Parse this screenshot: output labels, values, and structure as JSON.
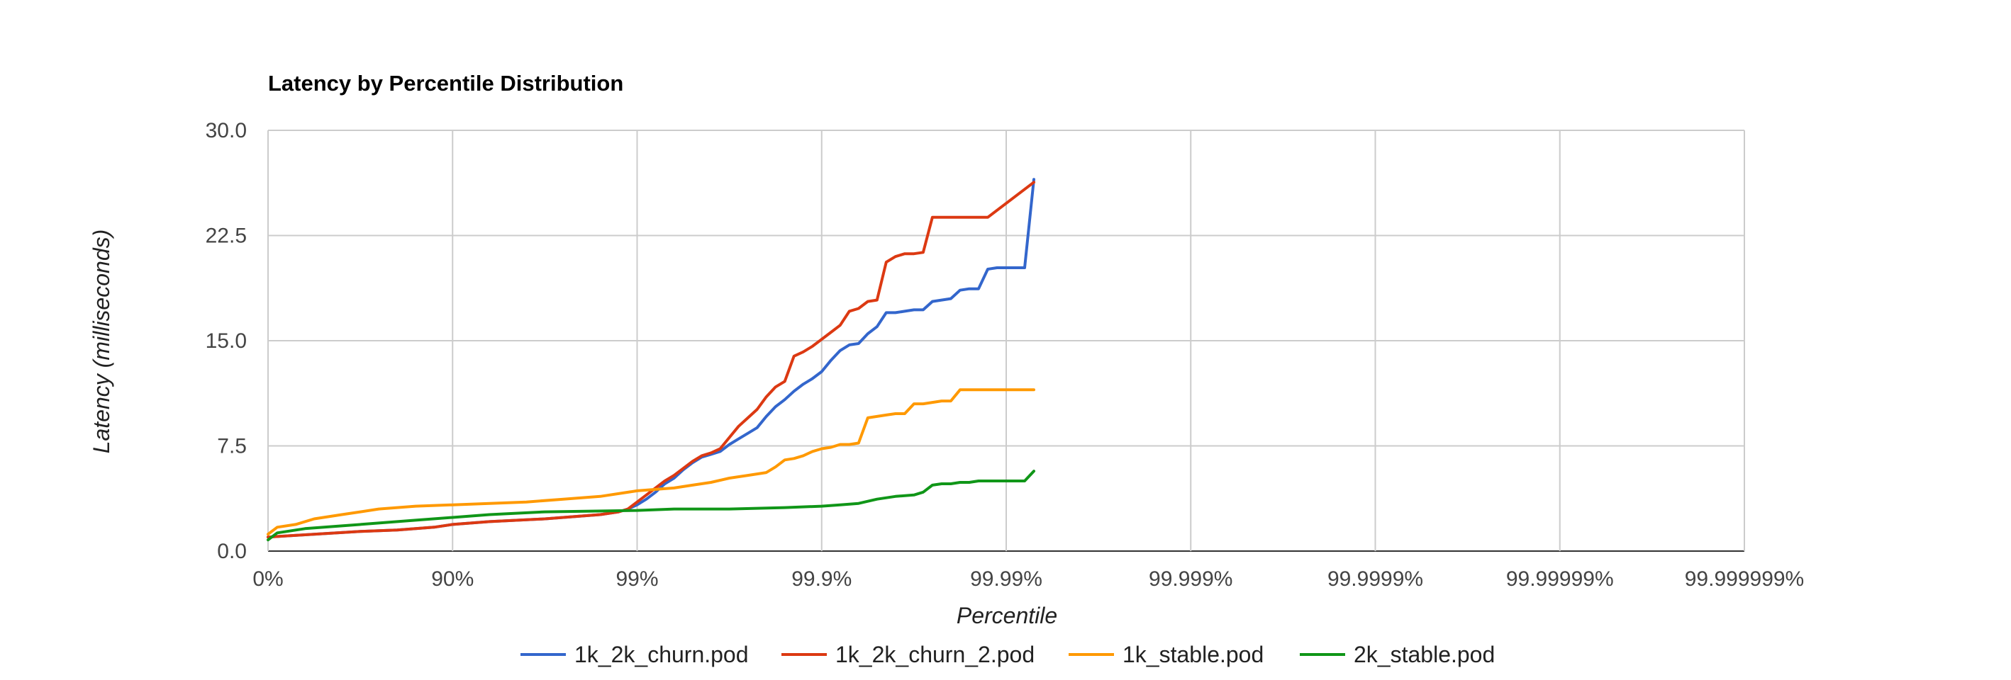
{
  "chart_data": {
    "type": "line",
    "title": "Latency by Percentile Distribution",
    "xlabel": "Percentile",
    "ylabel": "Latency (milliseconds)",
    "x_scale": "percentile-log (nines)",
    "x_ticks": [
      "0%",
      "90%",
      "99%",
      "99.9%",
      "99.99%",
      "99.999%",
      "99.9999%",
      "99.99999%",
      "99.999999%"
    ],
    "y_ticks": [
      "0.0",
      "7.5",
      "15.0",
      "22.5",
      "30.0"
    ],
    "ylim": [
      0,
      30
    ],
    "grid": true,
    "legend_position": "bottom",
    "series": [
      {
        "name": "1k_2k_churn.pod",
        "color": "#3366cc",
        "points": [
          [
            0,
            1.0
          ],
          [
            0.5,
            1.4
          ],
          [
            0.7,
            1.5
          ],
          [
            0.8,
            1.6
          ],
          [
            0.9,
            1.7
          ],
          [
            1.0,
            1.9
          ],
          [
            1.2,
            2.1
          ],
          [
            1.5,
            2.3
          ],
          [
            1.8,
            2.6
          ],
          [
            1.9,
            2.8
          ],
          [
            1.95,
            3.0
          ],
          [
            2.0,
            3.3
          ],
          [
            2.05,
            3.7
          ],
          [
            2.1,
            4.2
          ],
          [
            2.15,
            4.8
          ],
          [
            2.2,
            5.2
          ],
          [
            2.25,
            5.8
          ],
          [
            2.3,
            6.3
          ],
          [
            2.35,
            6.7
          ],
          [
            2.4,
            6.9
          ],
          [
            2.45,
            7.1
          ],
          [
            2.5,
            7.6
          ],
          [
            2.55,
            8.0
          ],
          [
            2.6,
            8.4
          ],
          [
            2.65,
            8.8
          ],
          [
            2.7,
            9.6
          ],
          [
            2.75,
            10.3
          ],
          [
            2.8,
            10.8
          ],
          [
            2.85,
            11.4
          ],
          [
            2.9,
            11.9
          ],
          [
            2.95,
            12.3
          ],
          [
            3.0,
            12.8
          ],
          [
            3.05,
            13.6
          ],
          [
            3.1,
            14.3
          ],
          [
            3.15,
            14.7
          ],
          [
            3.2,
            14.8
          ],
          [
            3.25,
            15.5
          ],
          [
            3.3,
            16.0
          ],
          [
            3.35,
            17.0
          ],
          [
            3.4,
            17.0
          ],
          [
            3.45,
            17.1
          ],
          [
            3.5,
            17.2
          ],
          [
            3.55,
            17.2
          ],
          [
            3.6,
            17.8
          ],
          [
            3.65,
            17.9
          ],
          [
            3.7,
            18.0
          ],
          [
            3.75,
            18.6
          ],
          [
            3.8,
            18.7
          ],
          [
            3.85,
            18.7
          ],
          [
            3.9,
            20.1
          ],
          [
            3.95,
            20.2
          ],
          [
            4.0,
            20.2
          ],
          [
            4.05,
            20.2
          ],
          [
            4.1,
            20.2
          ],
          [
            4.15,
            26.5
          ]
        ]
      },
      {
        "name": "1k_2k_churn_2.pod",
        "color": "#dc3912",
        "points": [
          [
            0,
            1.0
          ],
          [
            0.5,
            1.4
          ],
          [
            0.7,
            1.5
          ],
          [
            0.8,
            1.6
          ],
          [
            0.9,
            1.7
          ],
          [
            1.0,
            1.9
          ],
          [
            1.2,
            2.1
          ],
          [
            1.5,
            2.3
          ],
          [
            1.8,
            2.6
          ],
          [
            1.9,
            2.8
          ],
          [
            1.95,
            3.0
          ],
          [
            2.0,
            3.5
          ],
          [
            2.05,
            4.0
          ],
          [
            2.1,
            4.5
          ],
          [
            2.15,
            5.0
          ],
          [
            2.2,
            5.4
          ],
          [
            2.25,
            5.9
          ],
          [
            2.3,
            6.4
          ],
          [
            2.35,
            6.8
          ],
          [
            2.4,
            7.0
          ],
          [
            2.45,
            7.3
          ],
          [
            2.5,
            8.1
          ],
          [
            2.55,
            8.9
          ],
          [
            2.6,
            9.5
          ],
          [
            2.65,
            10.1
          ],
          [
            2.7,
            11.0
          ],
          [
            2.75,
            11.7
          ],
          [
            2.8,
            12.1
          ],
          [
            2.85,
            13.9
          ],
          [
            2.9,
            14.2
          ],
          [
            2.95,
            14.6
          ],
          [
            3.0,
            15.1
          ],
          [
            3.05,
            15.6
          ],
          [
            3.1,
            16.1
          ],
          [
            3.15,
            17.1
          ],
          [
            3.2,
            17.3
          ],
          [
            3.25,
            17.8
          ],
          [
            3.3,
            17.9
          ],
          [
            3.35,
            20.6
          ],
          [
            3.4,
            21.0
          ],
          [
            3.45,
            21.2
          ],
          [
            3.5,
            21.2
          ],
          [
            3.55,
            21.3
          ],
          [
            3.6,
            23.8
          ],
          [
            3.65,
            23.8
          ],
          [
            3.7,
            23.8
          ],
          [
            3.75,
            23.8
          ],
          [
            3.8,
            23.8
          ],
          [
            3.85,
            23.8
          ],
          [
            3.9,
            23.8
          ],
          [
            4.15,
            26.3
          ]
        ]
      },
      {
        "name": "1k_stable.pod",
        "color": "#ff9900",
        "points": [
          [
            0,
            1.2
          ],
          [
            0.05,
            1.7
          ],
          [
            0.15,
            1.9
          ],
          [
            0.25,
            2.3
          ],
          [
            0.4,
            2.6
          ],
          [
            0.5,
            2.8
          ],
          [
            0.6,
            3.0
          ],
          [
            0.8,
            3.2
          ],
          [
            1.0,
            3.3
          ],
          [
            1.2,
            3.4
          ],
          [
            1.4,
            3.5
          ],
          [
            1.6,
            3.7
          ],
          [
            1.8,
            3.9
          ],
          [
            2.0,
            4.3
          ],
          [
            2.1,
            4.4
          ],
          [
            2.2,
            4.5
          ],
          [
            2.3,
            4.7
          ],
          [
            2.4,
            4.9
          ],
          [
            2.5,
            5.2
          ],
          [
            2.6,
            5.4
          ],
          [
            2.7,
            5.6
          ],
          [
            2.75,
            6.0
          ],
          [
            2.8,
            6.5
          ],
          [
            2.85,
            6.6
          ],
          [
            2.9,
            6.8
          ],
          [
            2.95,
            7.1
          ],
          [
            3.0,
            7.3
          ],
          [
            3.05,
            7.4
          ],
          [
            3.1,
            7.6
          ],
          [
            3.15,
            7.6
          ],
          [
            3.2,
            7.7
          ],
          [
            3.25,
            9.5
          ],
          [
            3.3,
            9.6
          ],
          [
            3.35,
            9.7
          ],
          [
            3.4,
            9.8
          ],
          [
            3.45,
            9.8
          ],
          [
            3.5,
            10.5
          ],
          [
            3.55,
            10.5
          ],
          [
            3.6,
            10.6
          ],
          [
            3.65,
            10.7
          ],
          [
            3.7,
            10.7
          ],
          [
            3.75,
            11.5
          ],
          [
            3.8,
            11.5
          ],
          [
            4.15,
            11.5
          ]
        ]
      },
      {
        "name": "2k_stable.pod",
        "color": "#109618",
        "points": [
          [
            0,
            0.8
          ],
          [
            0.05,
            1.3
          ],
          [
            0.2,
            1.6
          ],
          [
            0.4,
            1.8
          ],
          [
            0.6,
            2.0
          ],
          [
            0.8,
            2.2
          ],
          [
            1.0,
            2.4
          ],
          [
            1.2,
            2.6
          ],
          [
            1.5,
            2.8
          ],
          [
            2.0,
            2.9
          ],
          [
            2.2,
            3.0
          ],
          [
            2.5,
            3.0
          ],
          [
            2.8,
            3.1
          ],
          [
            3.0,
            3.2
          ],
          [
            3.1,
            3.3
          ],
          [
            3.2,
            3.4
          ],
          [
            3.3,
            3.7
          ],
          [
            3.4,
            3.9
          ],
          [
            3.5,
            4.0
          ],
          [
            3.55,
            4.2
          ],
          [
            3.6,
            4.7
          ],
          [
            3.65,
            4.8
          ],
          [
            3.7,
            4.8
          ],
          [
            3.75,
            4.9
          ],
          [
            3.8,
            4.9
          ],
          [
            3.85,
            5.0
          ],
          [
            3.9,
            5.0
          ],
          [
            4.1,
            5.0
          ],
          [
            4.15,
            5.7
          ]
        ]
      }
    ]
  }
}
